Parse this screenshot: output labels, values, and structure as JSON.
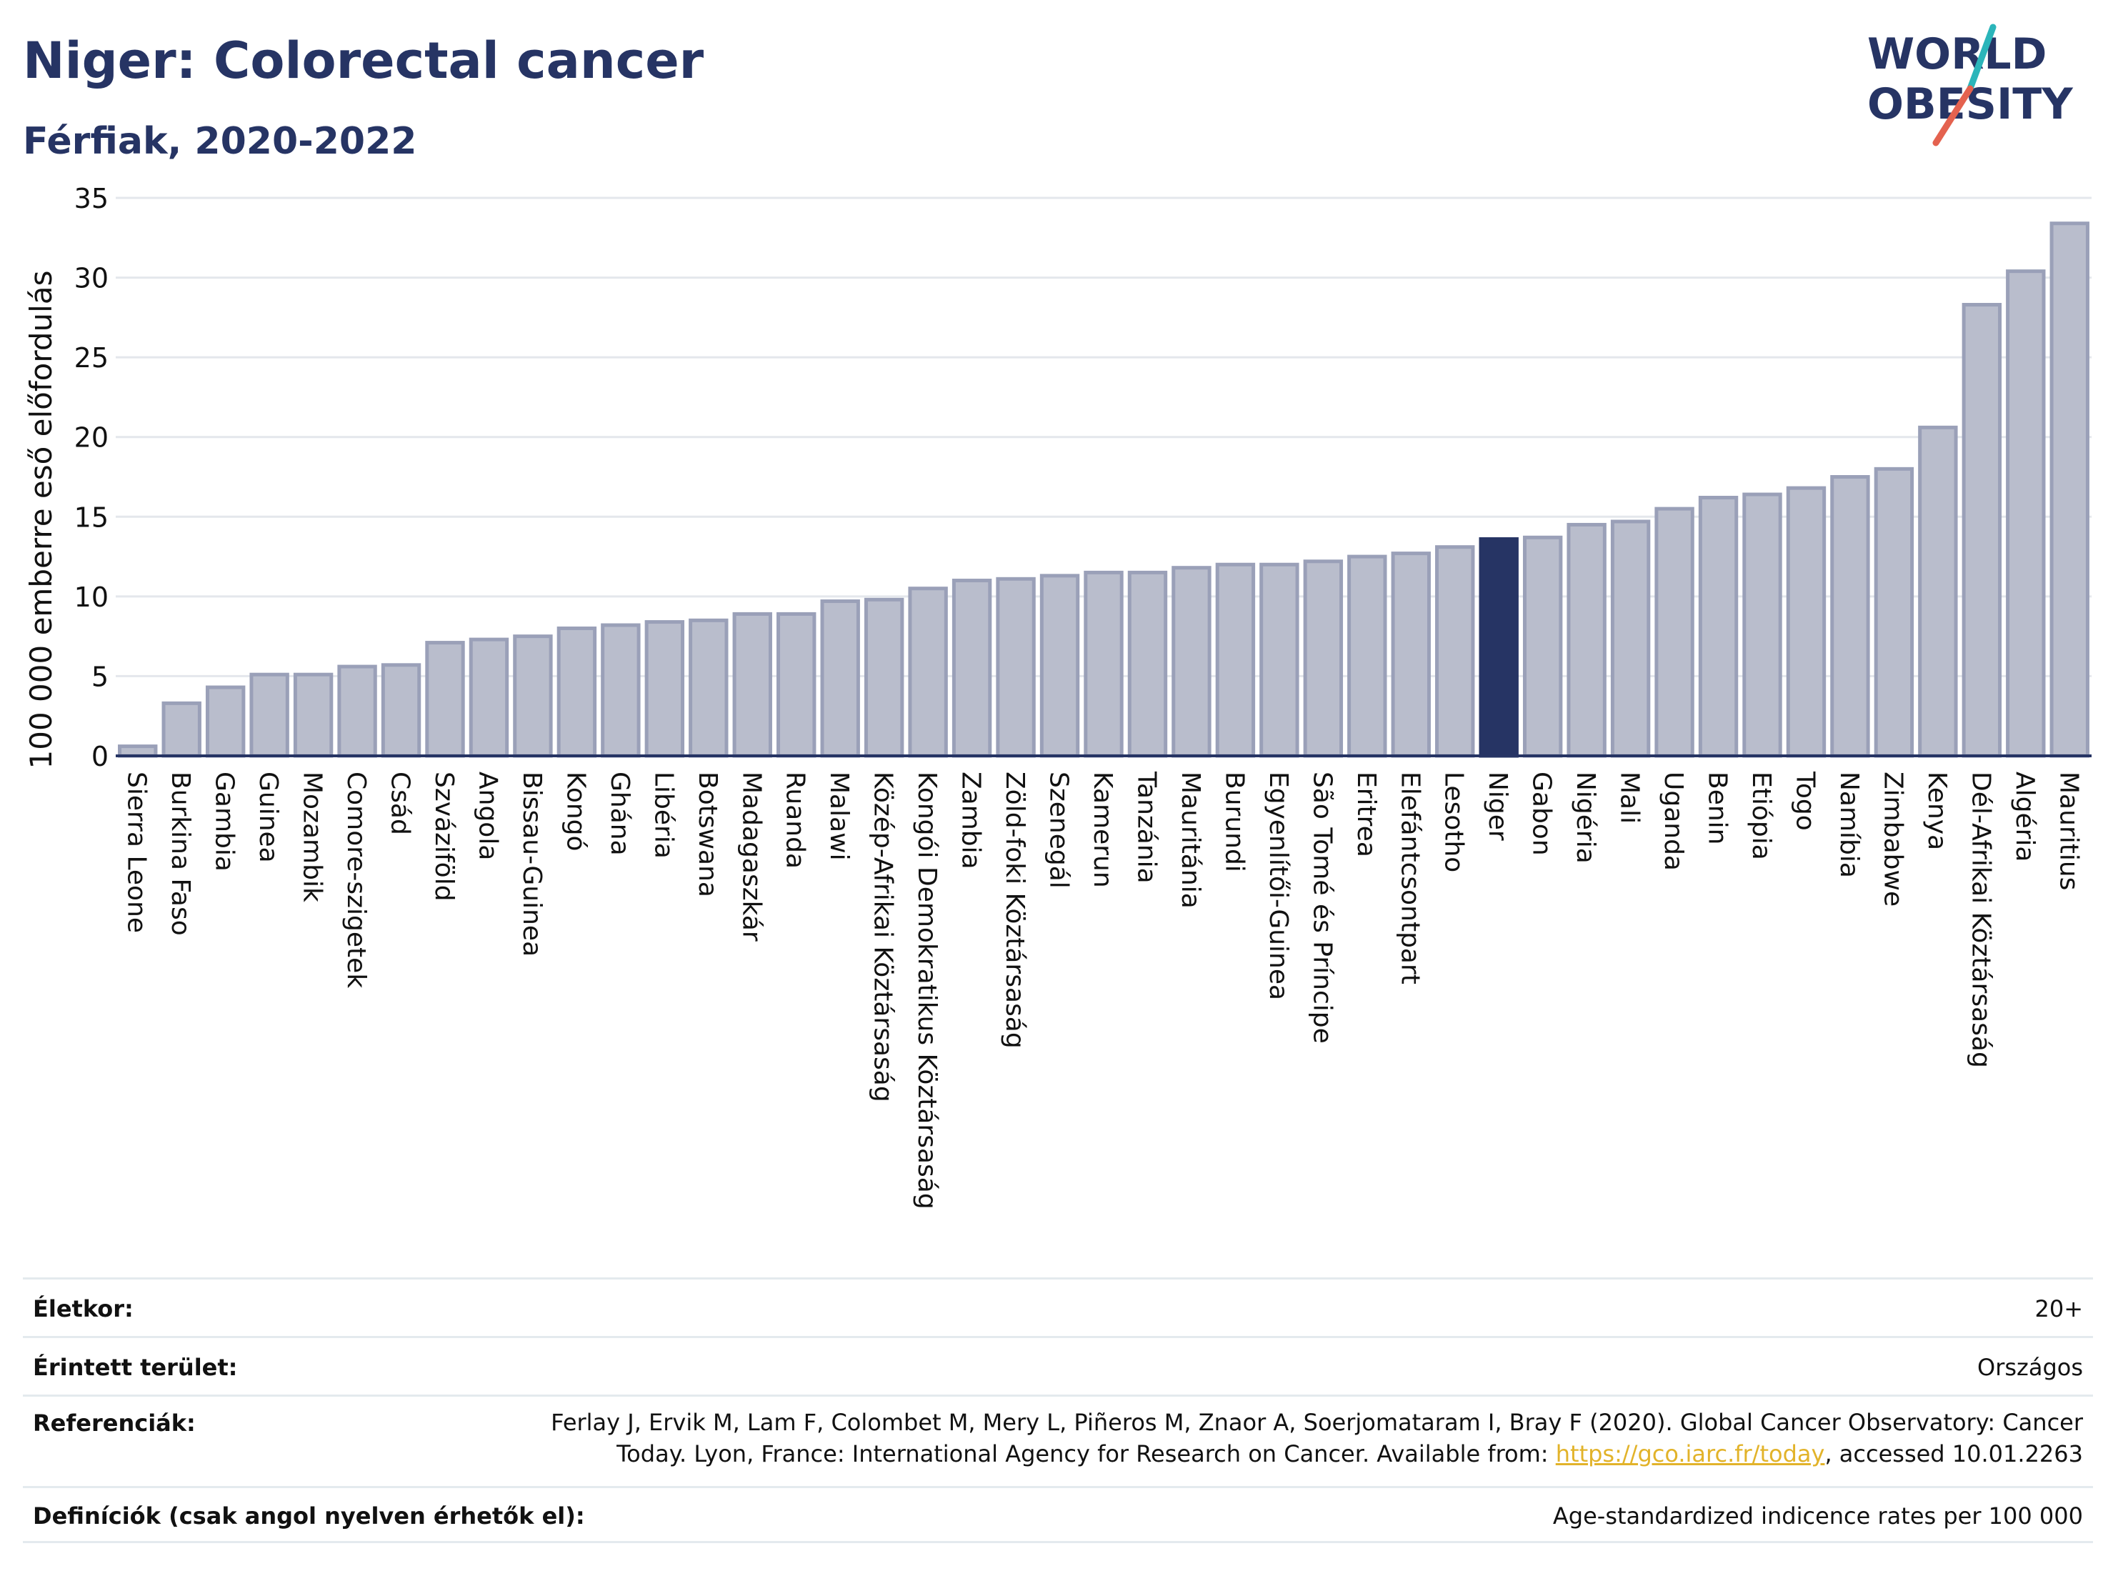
{
  "header": {
    "title": "Niger: Colorectal cancer",
    "subtitle": "Férfiak, 2020-2022"
  },
  "logo": {
    "line1": "WORLD",
    "line2": "OBESITY",
    "text_color": "#263464",
    "slash_colors": [
      "#2bb5ba",
      "#e4624f"
    ]
  },
  "colors": {
    "bar_default": "#b9bdcc",
    "bar_default_edge": "#9aa0b8",
    "bar_highlight": "#263464",
    "grid": "#e4e7ec",
    "axis": "#263464"
  },
  "chart_data": {
    "type": "bar",
    "ylabel": "100 000 emberre eső előfordulás",
    "ylim": [
      0,
      35
    ],
    "yticks": [
      0,
      5,
      10,
      15,
      20,
      25,
      30,
      35
    ],
    "grid": true,
    "highlight": "Niger",
    "categories": [
      "Sierra Leone",
      "Burkina Faso",
      "Gambia",
      "Guinea",
      "Mozambik",
      "Comore-szigetek",
      "Csád",
      "Szváziföld",
      "Angola",
      "Bissau-Guinea",
      "Kongó",
      "Ghána",
      "Libéria",
      "Botswana",
      "Madagaszkár",
      "Ruanda",
      "Malawi",
      "Közép-Afrikai Köztársaság",
      "Kongói Demokratikus Köztársaság",
      "Zambia",
      "Zöld-foki Köztársaság",
      "Szenegál",
      "Kamerun",
      "Tanzánia",
      "Mauritánia",
      "Burundi",
      "Egyenlítői-Guinea",
      "São Tomé és Príncipe",
      "Eritrea",
      "Elefántcsontpart",
      "Lesotho",
      "Niger",
      "Gabon",
      "Nigéria",
      "Mali",
      "Uganda",
      "Benin",
      "Etiópia",
      "Togo",
      "Namíbia",
      "Zimbabwe",
      "Kenya",
      "Dél-Afrikai Köztársaság",
      "Algéria",
      "Mauritius"
    ],
    "values": [
      0.6,
      3.3,
      4.3,
      5.1,
      5.1,
      5.6,
      5.7,
      7.1,
      7.3,
      7.5,
      8.0,
      8.2,
      8.4,
      8.5,
      8.9,
      8.9,
      9.7,
      9.8,
      10.5,
      11.0,
      11.1,
      11.3,
      11.5,
      11.5,
      11.8,
      12.0,
      12.0,
      12.2,
      12.5,
      12.7,
      13.1,
      13.6,
      13.7,
      14.5,
      14.7,
      15.5,
      16.2,
      16.4,
      16.8,
      17.5,
      18.0,
      20.6,
      28.3,
      30.4,
      33.4
    ]
  },
  "meta": {
    "age_label": "Életkor:",
    "age_value": "20+",
    "area_label": "Érintett terület:",
    "area_value": "Országos",
    "ref_label": "Referenciák:",
    "ref_line1": "Ferlay J, Ervik M, Lam F, Colombet M, Mery L, Piñeros M, Znaor A, Soerjomataram I, Bray F (2020). Global Cancer Observatory: Cancer",
    "ref_line2_pre": "Today. Lyon, France: International Agency for Research on Cancer. Available from: ",
    "ref_link": "https://gco.iarc.fr/today",
    "ref_line2_post": ", accessed 10.01.2263",
    "def_label": "Definíciók (csak angol nyelven érhetők el):",
    "def_value": "Age-standardized indicence rates per 100 000"
  }
}
